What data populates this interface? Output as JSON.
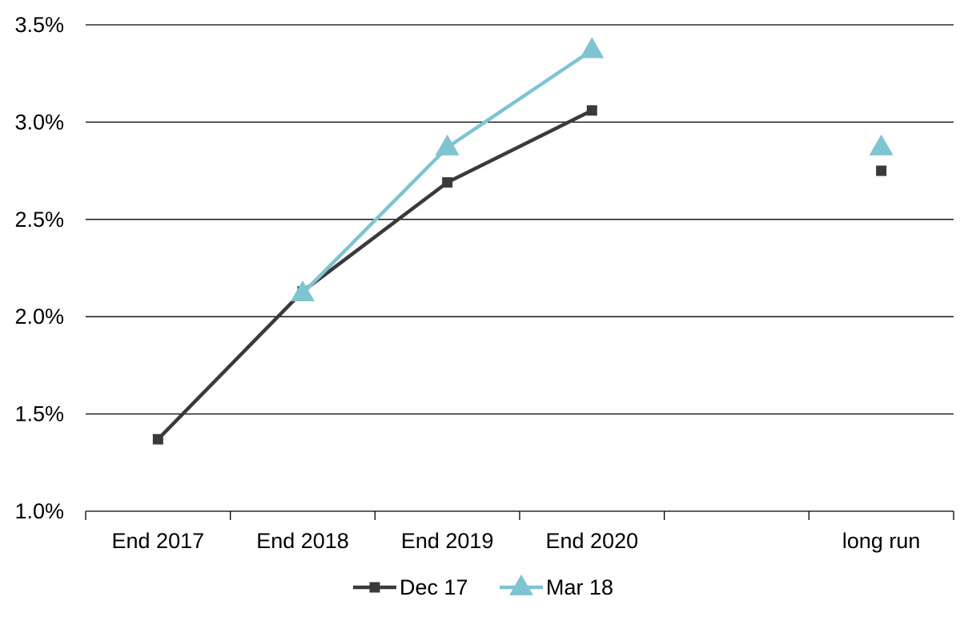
{
  "chart_data": {
    "type": "line",
    "categories": [
      "End 2017",
      "End 2018",
      "End 2019",
      "End 2020",
      "",
      "long run"
    ],
    "y_ticks": [
      "1.0%",
      "1.5%",
      "2.0%",
      "2.5%",
      "3.0%",
      "3.5%"
    ],
    "ylim": [
      1.0,
      3.5
    ],
    "grid": true,
    "legend_position": "bottom",
    "series": [
      {
        "name": "Dec 17",
        "color": "#3a3a3a",
        "marker": "square",
        "values": [
          1.37,
          2.13,
          2.69,
          3.06,
          null,
          2.75
        ]
      },
      {
        "name": "Mar 18",
        "color": "#7ec4d1",
        "marker": "triangle",
        "values": [
          null,
          2.12,
          2.87,
          3.37,
          null,
          2.87
        ]
      }
    ]
  }
}
